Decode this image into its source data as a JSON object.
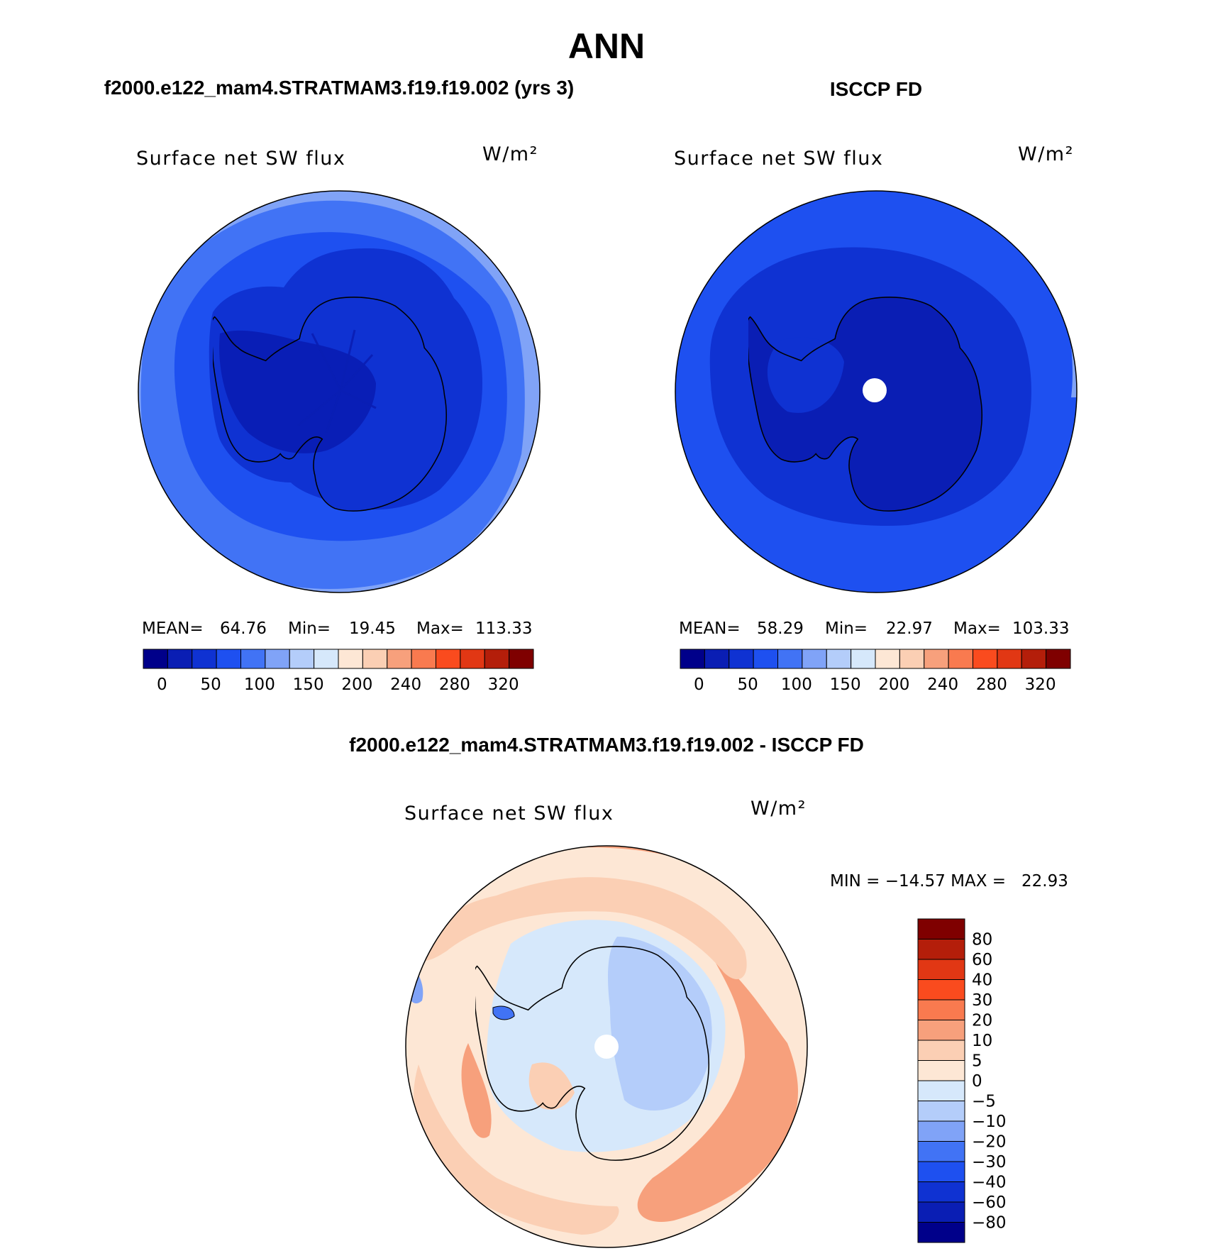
{
  "main_title": "ANN",
  "panels": [
    {
      "id": "model",
      "header": "f2000.e122_mam4.STRATMAM3.f19.f19.002 (yrs 3)",
      "variable": "Surface net SW flux",
      "units": "W/m²",
      "stats": {
        "mean_label": "MEAN=",
        "mean": "64.76",
        "min_label": "Min=",
        "min": "19.45",
        "max_label": "Max=",
        "max": "113.33"
      },
      "has_pole_hole": false
    },
    {
      "id": "obs",
      "header": "ISCCP FD",
      "variable": "Surface net SW flux",
      "units": "W/m²",
      "stats": {
        "mean_label": "MEAN=",
        "mean": "58.29",
        "min_label": "Min=",
        "min": "22.97",
        "max_label": "Max=",
        "max": "103.33"
      },
      "has_pole_hole": true
    }
  ],
  "abs_colorbar": {
    "colors": [
      "#00008a",
      "#0a1eb4",
      "#0f32d2",
      "#1e50f0",
      "#4173f5",
      "#80a3f7",
      "#b4cdfa",
      "#d6e8fb",
      "#fde7d5",
      "#fbcfb4",
      "#f7a07c",
      "#f97a4f",
      "#fa4b1e",
      "#e13714",
      "#b41e0a",
      "#7f0000"
    ],
    "tick_labels": [
      "0",
      "50",
      "100",
      "150",
      "200",
      "240",
      "280",
      "320"
    ]
  },
  "difference": {
    "header": "f2000.e122_mam4.STRATMAM3.f19.f19.002 - ISCCP FD",
    "variable": "Surface net SW flux",
    "units": "W/m²",
    "min_max_text": "MIN = −14.57 MAX =   22.93",
    "colorbar": {
      "colors_top_to_bottom": [
        "#7f0000",
        "#b41e0a",
        "#e13714",
        "#fa4b1e",
        "#f97a4f",
        "#f7a07c",
        "#fbcfb4",
        "#fde7d5",
        "#d6e8fb",
        "#b4cdfa",
        "#80a3f7",
        "#4173f5",
        "#1e50f0",
        "#0f32d2",
        "#0a1eb4",
        "#00008a"
      ],
      "tick_labels": [
        "80",
        "60",
        "40",
        "30",
        "20",
        "10",
        "5",
        "0",
        "−5",
        "−10",
        "−20",
        "−30",
        "−40",
        "−60",
        "−80"
      ]
    }
  }
}
